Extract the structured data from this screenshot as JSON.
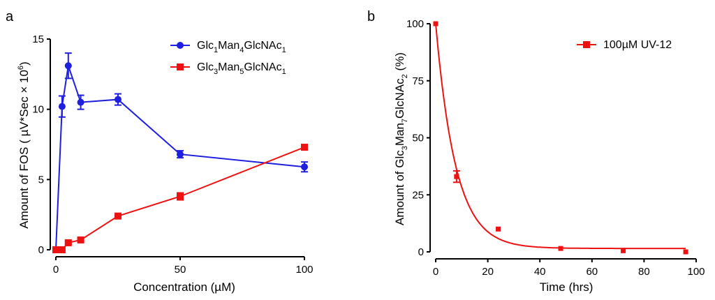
{
  "chart_data": [
    {
      "panel": "a",
      "type": "line",
      "xlabel": "Concentration (µM)",
      "ylabel": "Amount of FOS ( µV*Sec × 10",
      "ylabel_sup": "6",
      "ylabel_end": ")",
      "xlim": [
        0,
        100
      ],
      "ylim": [
        0,
        15
      ],
      "xticks": [
        0,
        50,
        100
      ],
      "yticks": [
        0,
        5,
        10,
        15
      ],
      "legend_position": "top-right",
      "series": [
        {
          "name": "Glc1Man4GlcNAc1",
          "label_parts": [
            [
              "Glc",
              ""
            ],
            [
              "1",
              "sub"
            ],
            [
              "Man",
              ""
            ],
            [
              "4",
              "sub"
            ],
            [
              "GlcNAc",
              ""
            ],
            [
              "1",
              "sub"
            ]
          ],
          "color": "#1f1fe0",
          "marker": "circle",
          "x": [
            0,
            2.5,
            5,
            10,
            25,
            50,
            100
          ],
          "y": [
            0,
            10.2,
            13.1,
            10.5,
            10.7,
            6.8,
            5.9
          ],
          "err": [
            0,
            0.75,
            0.9,
            0.5,
            0.4,
            0.25,
            0.35
          ]
        },
        {
          "name": "Glc3Man5GlcNAc1",
          "label_parts": [
            [
              "Glc",
              ""
            ],
            [
              "3",
              "sub"
            ],
            [
              "Man",
              ""
            ],
            [
              "5",
              "sub"
            ],
            [
              "GlcNAc",
              ""
            ],
            [
              "1",
              "sub"
            ]
          ],
          "color": "#ee1111",
          "marker": "square",
          "x": [
            0,
            2.5,
            5,
            10,
            25,
            50,
            100
          ],
          "y": [
            0,
            0,
            0.5,
            0.7,
            2.4,
            3.8,
            7.3
          ],
          "err": [
            0,
            0,
            0.1,
            0.1,
            0.15,
            0.25,
            0.1
          ]
        }
      ]
    },
    {
      "panel": "b",
      "type": "scatter",
      "xlabel": "Time (hrs)",
      "ylabel": "Amount of Glc",
      "ylabel_sub1": "3",
      "ylabel_mid": "Man",
      "ylabel_sub2": "7",
      "ylabel_mid2": "GlcNAc",
      "ylabel_sub3": "2",
      "ylabel_end": " (%)",
      "xlim": [
        0,
        100
      ],
      "ylim": [
        0,
        100
      ],
      "xticks": [
        0,
        20,
        40,
        60,
        80,
        100
      ],
      "yticks": [
        0,
        25,
        50,
        75,
        100
      ],
      "legend_position": "top-right",
      "series": [
        {
          "name": "100µM UV-12",
          "color": "#ee1111",
          "marker": "square",
          "x": [
            0,
            8,
            24,
            48,
            72,
            96
          ],
          "y": [
            100,
            33,
            10,
            1.5,
            0.5,
            0
          ],
          "err": [
            0,
            2.5,
            0.5,
            0.5,
            0.3,
            0
          ],
          "fit": {
            "model": "one-phase exponential decay",
            "y0": 100,
            "plateau": 1.5,
            "k": 0.13
          }
        }
      ]
    }
  ]
}
